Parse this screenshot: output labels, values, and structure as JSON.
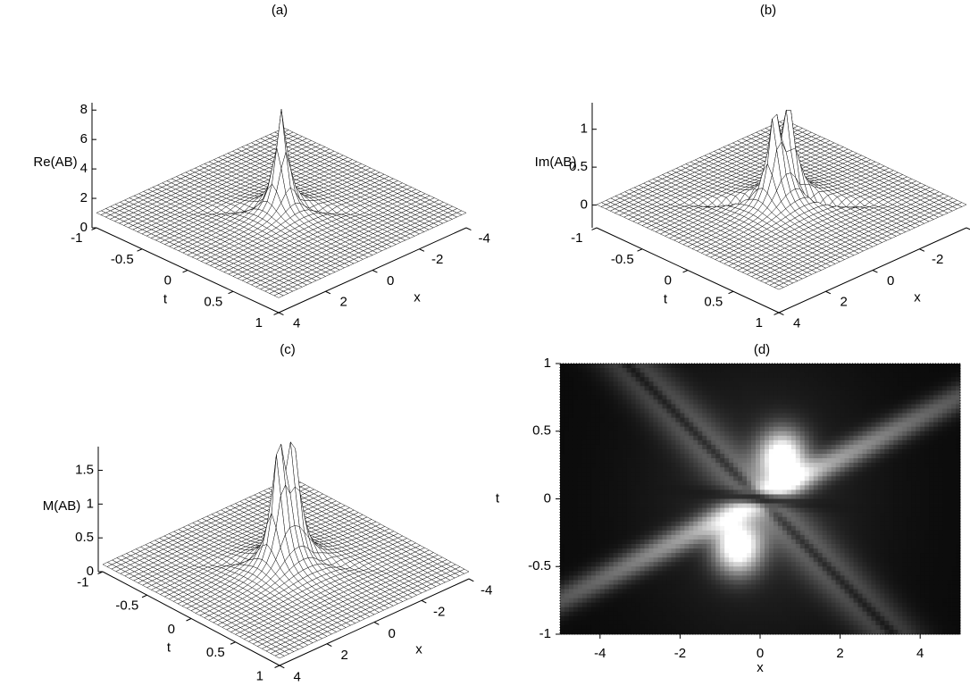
{
  "chart_data": [
    {
      "type": "surface",
      "title": "(a)",
      "xlabel": "x",
      "ylabel": "t",
      "zlabel": "Re(AB)",
      "xlim": [
        -4,
        4
      ],
      "ylim": [
        -1,
        1
      ],
      "zlim": [
        0,
        8.5
      ],
      "xticks": [
        -4,
        -2,
        0,
        2,
        4
      ],
      "yticks": [
        -1,
        -0.5,
        0,
        0.5,
        1
      ],
      "zticks": [
        0,
        2,
        4,
        6,
        8
      ]
    },
    {
      "type": "surface",
      "title": "(b)",
      "xlabel": "x",
      "ylabel": "t",
      "zlabel": "Im(AB)",
      "xlim": [
        -4,
        4
      ],
      "ylim": [
        -1,
        1
      ],
      "zlim": [
        -0.3,
        1.35
      ],
      "xticks": [
        -4,
        -2,
        0,
        2,
        4
      ],
      "yticks": [
        -1,
        -0.5,
        0,
        0.5,
        1
      ],
      "zticks": [
        0,
        0.5,
        1
      ]
    },
    {
      "type": "surface",
      "title": "(c)",
      "xlabel": "x",
      "ylabel": "t",
      "zlabel": "M(AB)",
      "xlim": [
        -4,
        4
      ],
      "ylim": [
        -1,
        1
      ],
      "zlim": [
        0,
        1.85
      ],
      "xticks": [
        -4,
        -2,
        0,
        2,
        4
      ],
      "yticks": [
        -1,
        -0.5,
        0,
        0.5,
        1
      ],
      "zticks": [
        0,
        0.5,
        1,
        1.5
      ]
    },
    {
      "type": "density",
      "title": "(d)",
      "xlabel": "x",
      "ylabel": "t",
      "xlim": [
        -5,
        5
      ],
      "ylim": [
        -1,
        1
      ],
      "xticks": [
        -4,
        -2,
        0,
        2,
        4
      ],
      "yticks": [
        -1,
        -0.5,
        0,
        0.5,
        1
      ]
    }
  ]
}
